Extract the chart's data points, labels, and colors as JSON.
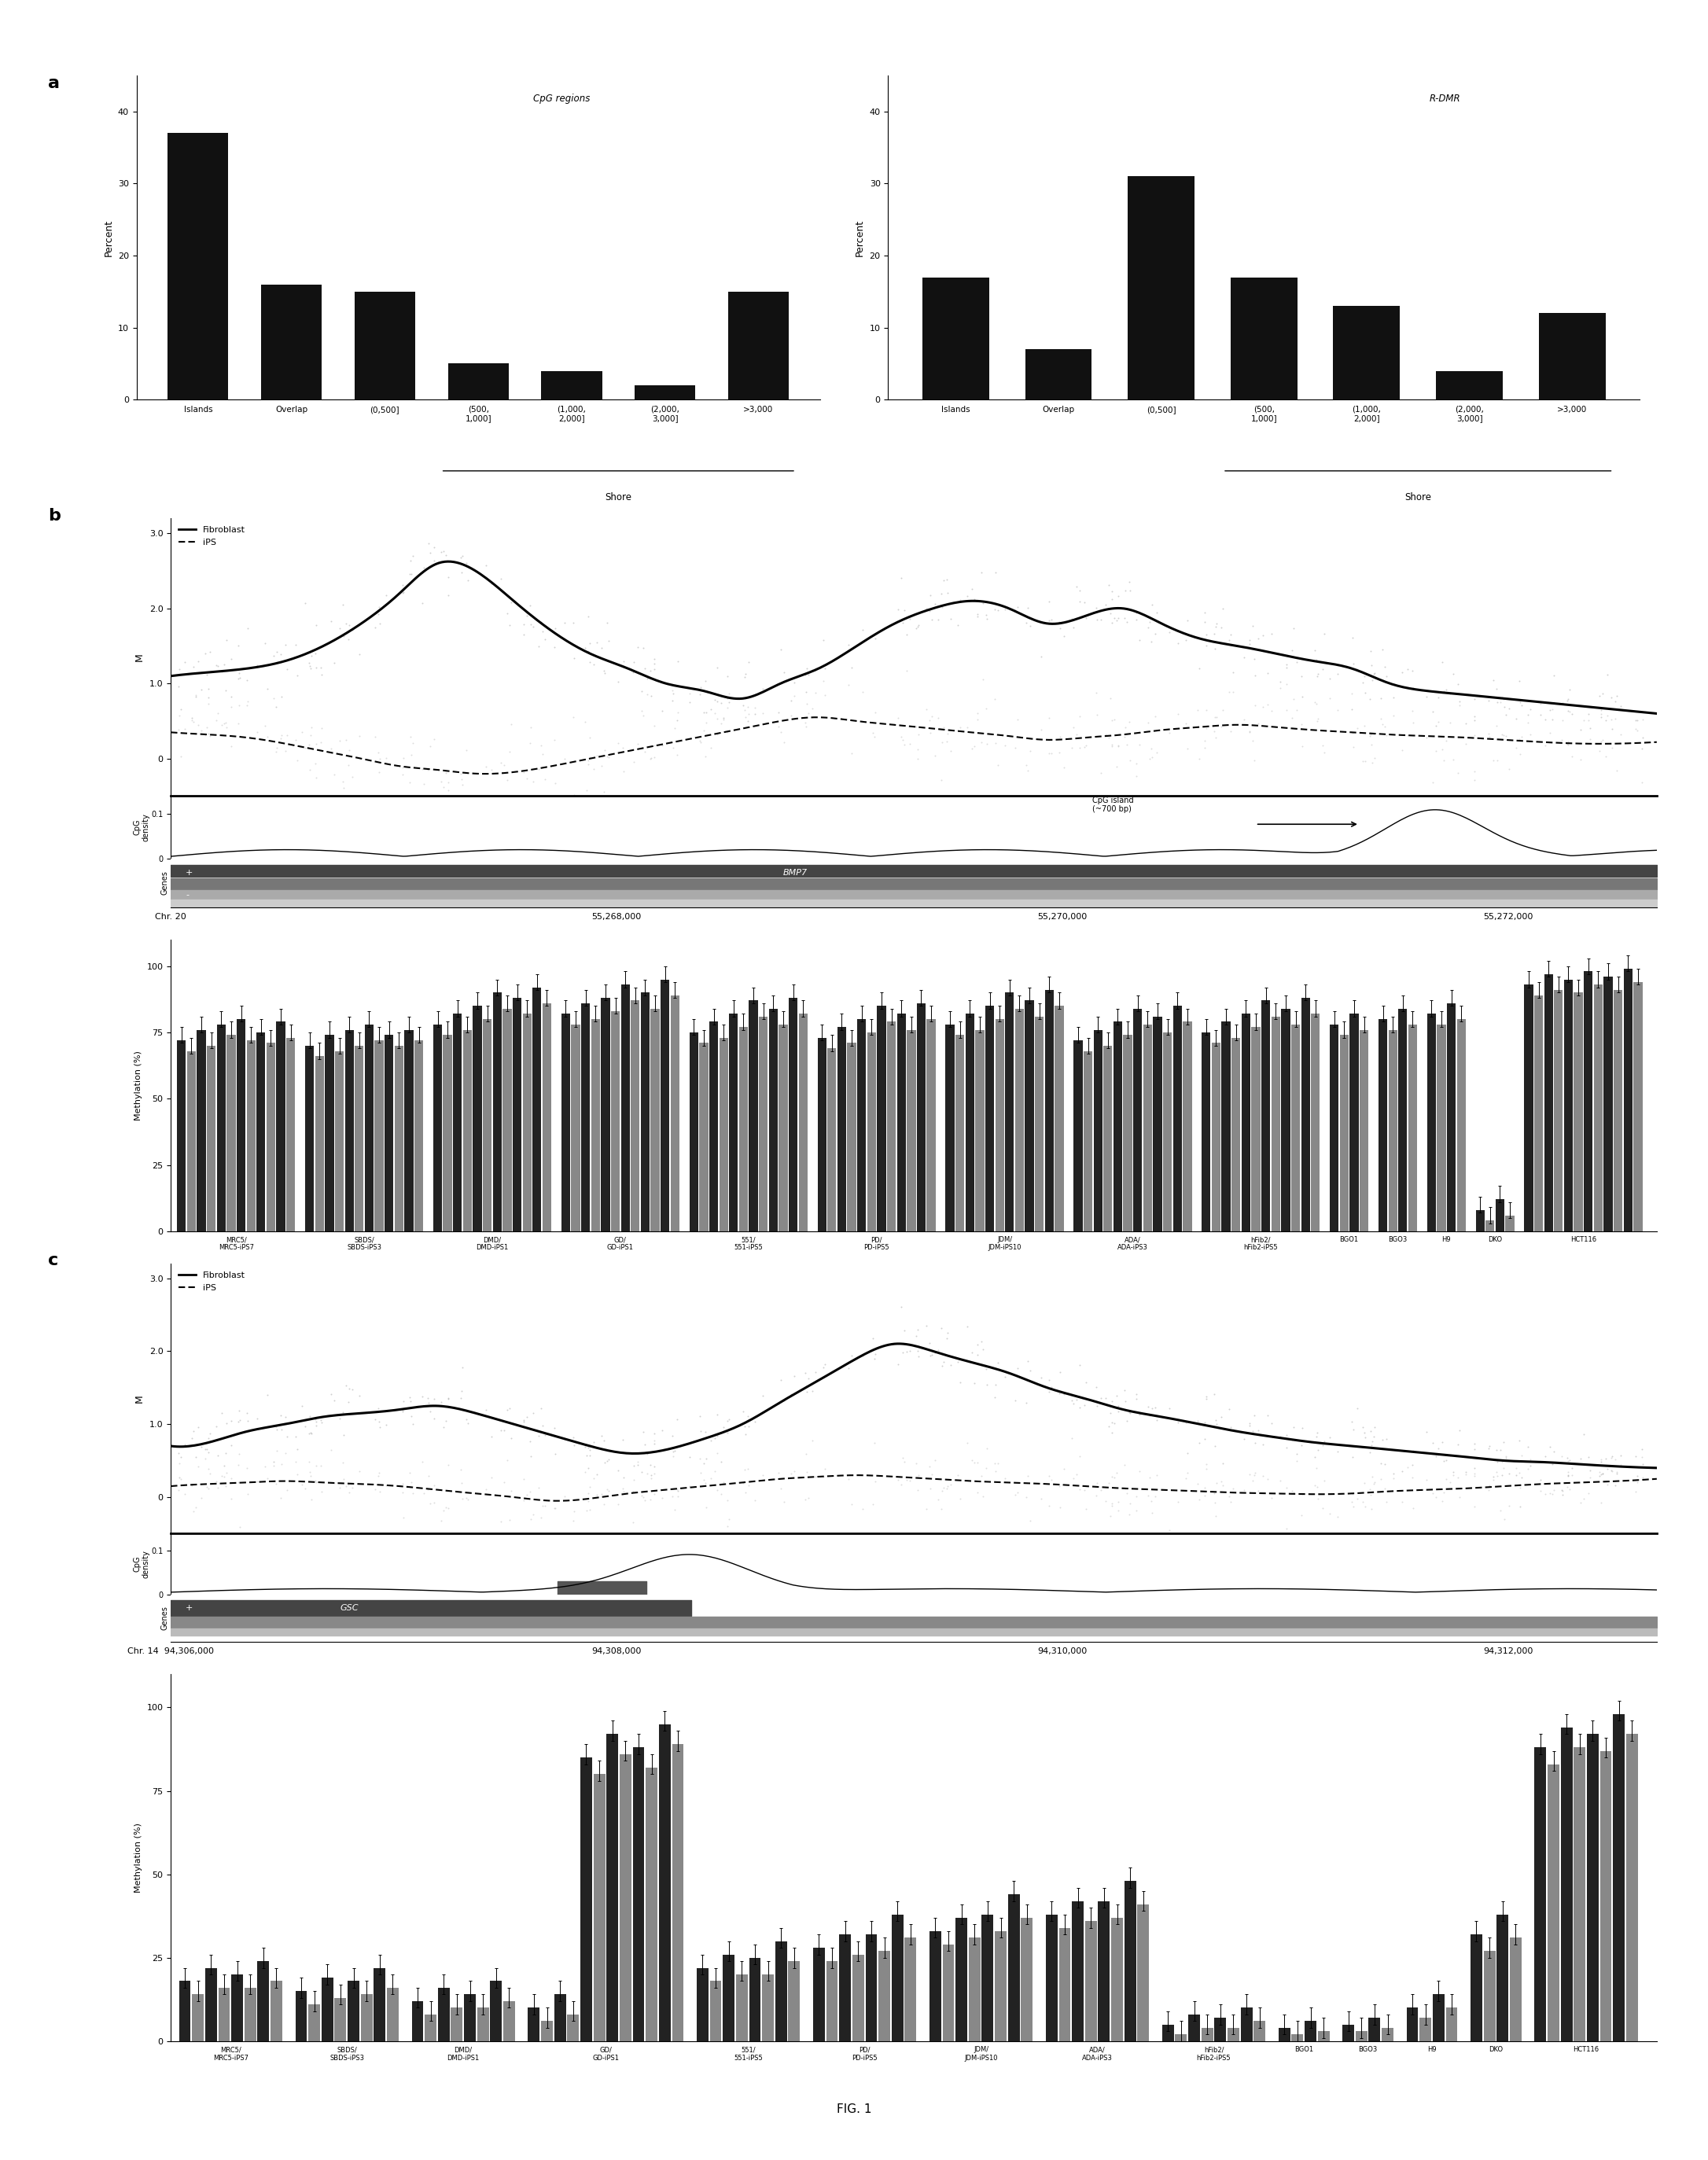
{
  "panel_a_left_vals": [
    37,
    16,
    15,
    5,
    4,
    2,
    15
  ],
  "panel_a_left_cats": [
    "Islands",
    "Overlap",
    "(0,500]",
    "(500,\n1,000]",
    "(1,000,\n2,000]",
    "(2,000,\n3,000]",
    ">3,000"
  ],
  "panel_a_right_vals": [
    17,
    7,
    31,
    17,
    13,
    4,
    12
  ],
  "panel_a_right_cats": [
    "Islands",
    "Overlap",
    "(0,500]",
    "(500,\n1,000]",
    "(1,000,\n2,000]",
    "(2,000,\n3,000]",
    ">3,000"
  ],
  "b_fib_line": [
    1.1,
    1.15,
    1.2,
    1.3,
    1.5,
    1.8,
    2.2,
    2.6,
    2.5,
    2.1,
    1.7,
    1.4,
    1.2,
    1.0,
    0.9,
    0.8,
    1.0,
    1.2,
    1.5,
    1.8,
    2.0,
    2.1,
    2.0,
    1.8,
    1.9,
    2.0,
    1.8,
    1.6,
    1.5,
    1.4,
    1.3,
    1.2,
    1.0,
    0.9,
    0.85,
    0.8,
    0.75,
    0.7,
    0.65,
    0.6
  ],
  "b_ips_line": [
    0.35,
    0.32,
    0.28,
    0.2,
    0.1,
    0.0,
    -0.1,
    -0.15,
    -0.2,
    -0.18,
    -0.1,
    0.0,
    0.1,
    0.2,
    0.3,
    0.4,
    0.5,
    0.55,
    0.5,
    0.45,
    0.4,
    0.35,
    0.3,
    0.25,
    0.28,
    0.32,
    0.38,
    0.42,
    0.45,
    0.42,
    0.38,
    0.35,
    0.32,
    0.3,
    0.28,
    0.25,
    0.22,
    0.2,
    0.2,
    0.22
  ],
  "c_fib_line": [
    0.7,
    0.75,
    0.9,
    1.0,
    1.1,
    1.15,
    1.2,
    1.25,
    1.15,
    1.0,
    0.85,
    0.7,
    0.6,
    0.65,
    0.8,
    1.0,
    1.3,
    1.6,
    1.9,
    2.1,
    2.0,
    1.85,
    1.7,
    1.5,
    1.35,
    1.2,
    1.1,
    1.0,
    0.9,
    0.82,
    0.75,
    0.7,
    0.65,
    0.6,
    0.55,
    0.5,
    0.48,
    0.45,
    0.42,
    0.4
  ],
  "c_ips_line": [
    0.15,
    0.18,
    0.2,
    0.22,
    0.2,
    0.18,
    0.15,
    0.1,
    0.05,
    0.0,
    -0.05,
    -0.02,
    0.05,
    0.1,
    0.15,
    0.2,
    0.25,
    0.28,
    0.3,
    0.28,
    0.25,
    0.22,
    0.2,
    0.18,
    0.15,
    0.12,
    0.1,
    0.08,
    0.06,
    0.05,
    0.04,
    0.05,
    0.08,
    0.1,
    0.12,
    0.15,
    0.18,
    0.2,
    0.22,
    0.25
  ],
  "b_bar_groups": [
    {
      "label": "MRC5/\nMRC5-iPS7",
      "bars": [
        72,
        68,
        76,
        70,
        78,
        74,
        80,
        72,
        75,
        71,
        79,
        73
      ]
    },
    {
      "label": "SBDS/\nSBDS-iPS3",
      "bars": [
        70,
        66,
        74,
        68,
        76,
        70,
        78,
        72,
        74,
        70,
        76,
        72
      ]
    },
    {
      "label": "DMD/\nDMD-iPS1",
      "bars": [
        78,
        74,
        82,
        76,
        85,
        80,
        90,
        84,
        88,
        82,
        92,
        86
      ]
    },
    {
      "label": "GD/\nGD-iPS1",
      "bars": [
        82,
        78,
        86,
        80,
        88,
        83,
        93,
        87,
        90,
        84,
        95,
        89
      ]
    },
    {
      "label": "551/\n551-iPS5",
      "bars": [
        75,
        71,
        79,
        73,
        82,
        77,
        87,
        81,
        84,
        78,
        88,
        82
      ]
    },
    {
      "label": "PD/\nPD-iPS5",
      "bars": [
        73,
        69,
        77,
        71,
        80,
        75,
        85,
        79,
        82,
        76,
        86,
        80
      ]
    },
    {
      "label": "JDM/\nJDM-iPS10",
      "bars": [
        78,
        74,
        82,
        76,
        85,
        80,
        90,
        84,
        87,
        81,
        91,
        85
      ]
    },
    {
      "label": "ADA/\nADA-iPS3",
      "bars": [
        72,
        68,
        76,
        70,
        79,
        74,
        84,
        78,
        81,
        75,
        85,
        79
      ]
    },
    {
      "label": "hFib2/\nhFib2-iPS5",
      "bars": [
        75,
        71,
        79,
        73,
        82,
        77,
        87,
        81,
        84,
        78,
        88,
        82
      ]
    },
    {
      "label": "BGO1",
      "bars": [
        78,
        74,
        82,
        76
      ]
    },
    {
      "label": "BGO3",
      "bars": [
        80,
        76,
        84,
        78
      ]
    },
    {
      "label": "H9",
      "bars": [
        82,
        78,
        86,
        80
      ]
    },
    {
      "label": "DKO",
      "bars": [
        8,
        4,
        12,
        6
      ]
    },
    {
      "label": "HCT116",
      "bars": [
        93,
        89,
        97,
        91,
        95,
        90,
        98,
        93,
        96,
        91,
        99,
        94
      ]
    }
  ],
  "c_bar_groups": [
    {
      "label": "MRC5/\nMRC5-iPS7",
      "bars": [
        18,
        14,
        22,
        16,
        20,
        16,
        24,
        18
      ]
    },
    {
      "label": "SBDS/\nSBDS-iPS3",
      "bars": [
        15,
        11,
        19,
        13,
        18,
        14,
        22,
        16
      ]
    },
    {
      "label": "DMD/\nDMD-iPS1",
      "bars": [
        12,
        8,
        16,
        10,
        14,
        10,
        18,
        12
      ]
    },
    {
      "label": "GD/\nGD-iPS1",
      "bars": [
        10,
        6,
        14,
        8,
        85,
        80,
        92,
        86,
        88,
        82,
        95,
        89
      ]
    },
    {
      "label": "551/\n551-iPS5",
      "bars": [
        22,
        18,
        26,
        20,
        25,
        20,
        30,
        24
      ]
    },
    {
      "label": "PD/\nPD-iPS5",
      "bars": [
        28,
        24,
        32,
        26,
        32,
        27,
        38,
        31
      ]
    },
    {
      "label": "JDM/\nJDM-iPS10",
      "bars": [
        33,
        29,
        37,
        31,
        38,
        33,
        44,
        37
      ]
    },
    {
      "label": "ADA/\nADA-iPS3",
      "bars": [
        38,
        34,
        42,
        36,
        42,
        37,
        48,
        41
      ]
    },
    {
      "label": "hFib2/\nhFib2-iPS5",
      "bars": [
        5,
        2,
        8,
        4,
        7,
        4,
        10,
        6
      ]
    },
    {
      "label": "BGO1",
      "bars": [
        4,
        2,
        6,
        3
      ]
    },
    {
      "label": "BGO3",
      "bars": [
        5,
        3,
        7,
        4
      ]
    },
    {
      "label": "H9",
      "bars": [
        10,
        7,
        14,
        10
      ]
    },
    {
      "label": "DKO",
      "bars": [
        32,
        27,
        38,
        31
      ]
    },
    {
      "label": "HCT116",
      "bars": [
        88,
        83,
        94,
        88,
        92,
        87,
        98,
        92
      ]
    }
  ]
}
